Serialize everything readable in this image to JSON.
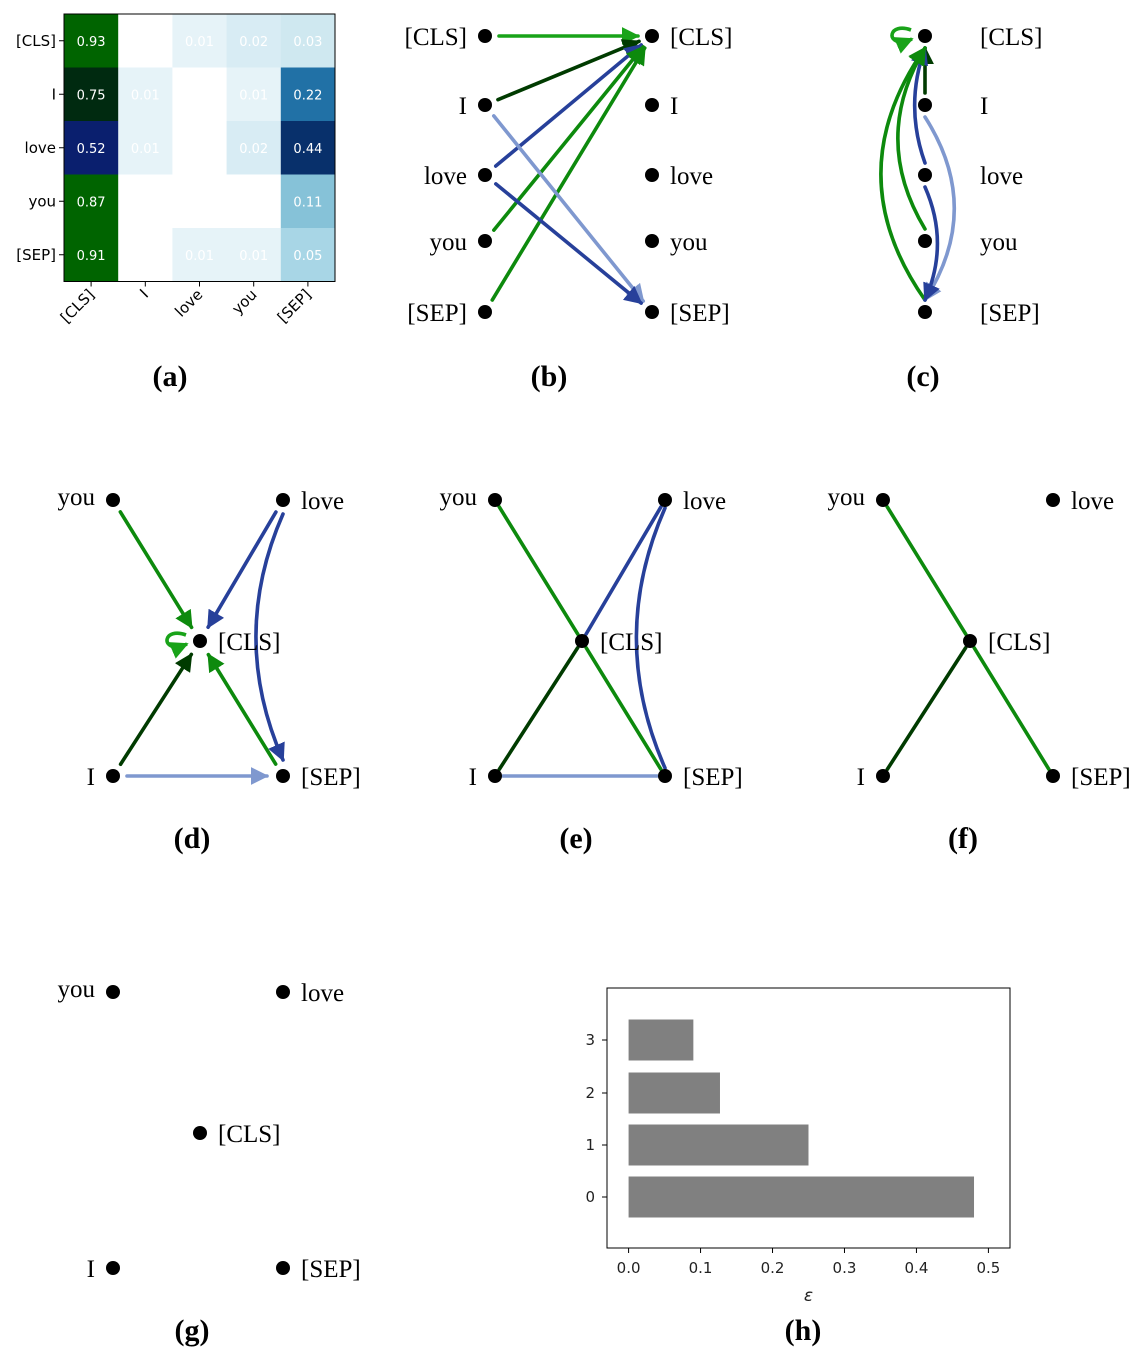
{
  "panels": [
    {
      "id": "a",
      "caption": "(a)"
    },
    {
      "id": "b",
      "caption": "(b)"
    },
    {
      "id": "c",
      "caption": "(c)"
    },
    {
      "id": "d",
      "caption": "(d)"
    },
    {
      "id": "e",
      "caption": "(e)"
    },
    {
      "id": "f",
      "caption": "(f)"
    },
    {
      "id": "g",
      "caption": "(g)"
    },
    {
      "id": "h",
      "caption": "(h)"
    }
  ],
  "tokens": [
    "[CLS]",
    "I",
    "love",
    "you",
    "[SEP]"
  ],
  "heatmap": {
    "rows": [
      "[CLS]",
      "I",
      "love",
      "you",
      "[SEP]"
    ],
    "cols": [
      "[CLS]",
      "I",
      "love",
      "you",
      "[SEP]"
    ],
    "values": [
      [
        0.93,
        0.0,
        0.01,
        0.02,
        0.03
      ],
      [
        0.75,
        0.01,
        0.0,
        0.01,
        0.22
      ],
      [
        0.52,
        0.01,
        0.0,
        0.02,
        0.44
      ],
      [
        0.87,
        0.0,
        0.0,
        0.0,
        0.11
      ],
      [
        0.91,
        0.0,
        0.01,
        0.01,
        0.05
      ]
    ],
    "shown_labels": [
      [
        "0.93",
        "",
        "0.01",
        "0.02",
        "0.03"
      ],
      [
        "0.75",
        "0.01",
        "",
        "0.01",
        "0.22"
      ],
      [
        "0.52",
        "0.01",
        "",
        "0.02",
        "0.44"
      ],
      [
        "0.87",
        "",
        "",
        "",
        "0.11"
      ],
      [
        "0.91",
        "",
        "0.01",
        "0.01",
        "0.05"
      ]
    ],
    "dark_colors": {
      "[CLS]": "#006400",
      "I": "#002a10",
      "love": "#0a1f6e",
      "you": "#006400",
      "[SEP]": "#006400"
    },
    "sep_column_colors": [
      "#cfe8f0",
      "#2171a6",
      "#08306b",
      "#86c2d8",
      "#a8d6e6"
    ],
    "light_colors": [
      "#e6f3f8",
      "#e2f1f7",
      "#d8ecf4"
    ]
  },
  "colors": {
    "green": "#0d8a0d",
    "dark_green": "#003b00",
    "bright_green": "#19a319",
    "blue": "#27409a",
    "light_blue": "#7f98cf"
  },
  "graph_b": {
    "source_nodes": [
      "[CLS]",
      "I",
      "love",
      "you",
      "[SEP]"
    ],
    "target_nodes": [
      "[CLS]",
      "I",
      "love",
      "you",
      "[SEP]"
    ],
    "edges": [
      {
        "from": "[CLS]",
        "to": "[CLS]",
        "color": "bright_green"
      },
      {
        "from": "I",
        "to": "[CLS]",
        "color": "dark_green"
      },
      {
        "from": "love",
        "to": "[CLS]",
        "color": "blue"
      },
      {
        "from": "you",
        "to": "[CLS]",
        "color": "green"
      },
      {
        "from": "[SEP]",
        "to": "[CLS]",
        "color": "green"
      },
      {
        "from": "I",
        "to": "[SEP]",
        "color": "light_blue"
      },
      {
        "from": "love",
        "to": "[SEP]",
        "color": "blue"
      }
    ]
  },
  "graph_c": {
    "nodes": [
      "[CLS]",
      "I",
      "love",
      "you",
      "[SEP]"
    ],
    "edges": [
      {
        "from": "[CLS]",
        "to": "[CLS]",
        "color": "bright_green"
      },
      {
        "from": "I",
        "to": "[CLS]",
        "color": "dark_green"
      },
      {
        "from": "love",
        "to": "[CLS]",
        "color": "blue"
      },
      {
        "from": "you",
        "to": "[CLS]",
        "color": "green"
      },
      {
        "from": "[SEP]",
        "to": "[CLS]",
        "color": "green"
      },
      {
        "from": "I",
        "to": "[SEP]",
        "color": "light_blue"
      },
      {
        "from": "love",
        "to": "[SEP]",
        "color": "blue"
      }
    ]
  },
  "graph_d": {
    "nodes": [
      "you",
      "love",
      "[CLS]",
      "I",
      "[SEP]"
    ],
    "directed": true,
    "edges": [
      {
        "from": "you",
        "to": "[CLS]",
        "color": "green"
      },
      {
        "from": "love",
        "to": "[CLS]",
        "color": "blue"
      },
      {
        "from": "I",
        "to": "[CLS]",
        "color": "dark_green"
      },
      {
        "from": "[SEP]",
        "to": "[CLS]",
        "color": "green"
      },
      {
        "from": "I",
        "to": "[SEP]",
        "color": "light_blue"
      },
      {
        "from": "love",
        "to": "[SEP]",
        "color": "blue"
      },
      {
        "from": "[CLS]",
        "to": "[CLS]",
        "color": "bright_green"
      }
    ]
  },
  "graph_e": {
    "nodes": [
      "you",
      "love",
      "[CLS]",
      "I",
      "[SEP]"
    ],
    "directed": false,
    "edges": [
      {
        "from": "you",
        "to": "[CLS]",
        "color": "green"
      },
      {
        "from": "love",
        "to": "[CLS]",
        "color": "blue"
      },
      {
        "from": "I",
        "to": "[CLS]",
        "color": "dark_green"
      },
      {
        "from": "[SEP]",
        "to": "[CLS]",
        "color": "green"
      },
      {
        "from": "I",
        "to": "[SEP]",
        "color": "light_blue"
      },
      {
        "from": "love",
        "to": "[SEP]",
        "color": "blue"
      }
    ]
  },
  "graph_f": {
    "nodes": [
      "you",
      "love",
      "[CLS]",
      "I",
      "[SEP]"
    ],
    "directed": false,
    "edges": [
      {
        "from": "you",
        "to": "[CLS]",
        "color": "green"
      },
      {
        "from": "I",
        "to": "[CLS]",
        "color": "dark_green"
      },
      {
        "from": "[SEP]",
        "to": "[CLS]",
        "color": "green"
      }
    ]
  },
  "graph_g": {
    "nodes": [
      "you",
      "love",
      "[CLS]",
      "I",
      "[SEP]"
    ],
    "edges": []
  },
  "chart_data": {
    "type": "bar",
    "orientation": "horizontal",
    "categories": [
      "0",
      "1",
      "2",
      "3"
    ],
    "values": [
      0.48,
      0.25,
      0.127,
      0.09
    ],
    "xlabel": "ε",
    "ylabel": "",
    "xlim": [
      -0.03,
      0.53
    ],
    "xticks": [
      "0.0",
      "0.1",
      "0.2",
      "0.3",
      "0.4",
      "0.5"
    ],
    "bar_color": "#808080",
    "grid": false
  }
}
